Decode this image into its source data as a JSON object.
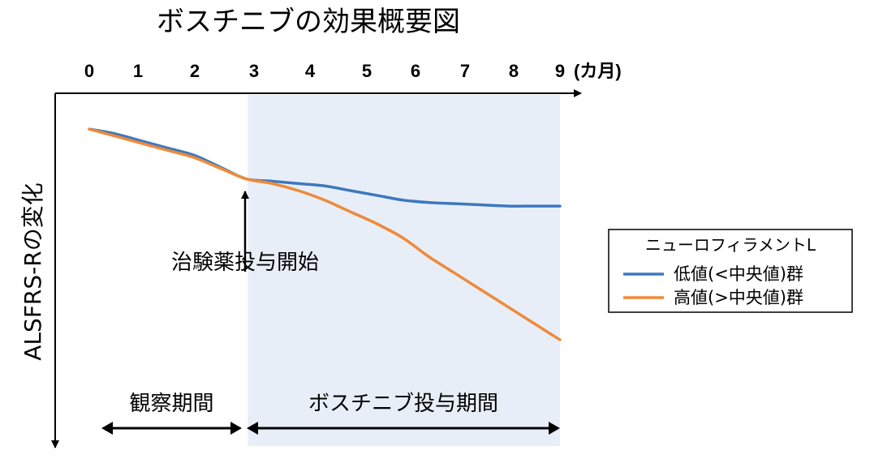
{
  "chart_data": {
    "type": "line",
    "title": "ボスチニブの効果概要図",
    "x_ticks": [
      "0",
      "1",
      "2",
      "3",
      "4",
      "5",
      "6",
      "7",
      "8",
      "9"
    ],
    "x_unit": "(カ月)",
    "ylabel": "ALSFRS-Rの変化",
    "xlim": [
      0,
      9
    ],
    "ylim": [
      0,
      1
    ],
    "grid": false,
    "legend": {
      "title": "ニューロフィラメントL",
      "position": "right"
    },
    "series": [
      {
        "name": "低値(<中央値)群",
        "color": "#3d78c0",
        "x": [
          0,
          0.5,
          1,
          1.5,
          2,
          2.5,
          3,
          3.5,
          4,
          4.5,
          5,
          5.5,
          6,
          6.5,
          7,
          7.5,
          8,
          8.5,
          9
        ],
        "y": [
          0.1,
          0.12,
          0.15,
          0.18,
          0.21,
          0.26,
          0.31,
          0.32,
          0.33,
          0.34,
          0.36,
          0.38,
          0.4,
          0.41,
          0.415,
          0.42,
          0.425,
          0.425,
          0.425
        ]
      },
      {
        "name": "高値(>中央値)群",
        "color": "#ef8a3a",
        "x": [
          0,
          0.5,
          1,
          1.5,
          2,
          2.5,
          3,
          3.5,
          4,
          4.5,
          5,
          5.5,
          6,
          6.5,
          7,
          7.5,
          8,
          8.5,
          9
        ],
        "y": [
          0.1,
          0.13,
          0.16,
          0.19,
          0.22,
          0.265,
          0.31,
          0.33,
          0.36,
          0.4,
          0.45,
          0.5,
          0.56,
          0.64,
          0.71,
          0.78,
          0.85,
          0.92,
          0.99
        ]
      }
    ],
    "shaded_region": {
      "x_start": 3,
      "x_end": 9,
      "color": "#e8eef7"
    },
    "annotations": {
      "drug_start": {
        "text": "治験薬投与開始",
        "x": 3
      },
      "periods": [
        {
          "text": "観察期間",
          "x_start": 0.2,
          "x_end": 3
        },
        {
          "text": "ボスチニブ投与期間",
          "x_start": 3,
          "x_end": 9
        }
      ]
    }
  }
}
